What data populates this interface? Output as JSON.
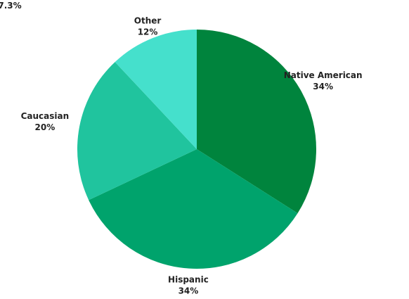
{
  "chart_data": {
    "type": "pie",
    "title": "",
    "slices": [
      {
        "label": "Native American",
        "value": 34,
        "value_label": "34%",
        "color": "#00843d"
      },
      {
        "label": "Hispanic",
        "value": 34,
        "value_label": "34%",
        "color": "#00a36c"
      },
      {
        "label": "Caucasian",
        "value": 20,
        "value_label": "20%",
        "color": "#20c49e"
      },
      {
        "label": "Other",
        "value": 12,
        "value_label": "12%",
        "color": "#45e0cc"
      }
    ],
    "clipped_label": "7.3%",
    "start_angle": "12 o'clock",
    "direction": "clockwise"
  }
}
